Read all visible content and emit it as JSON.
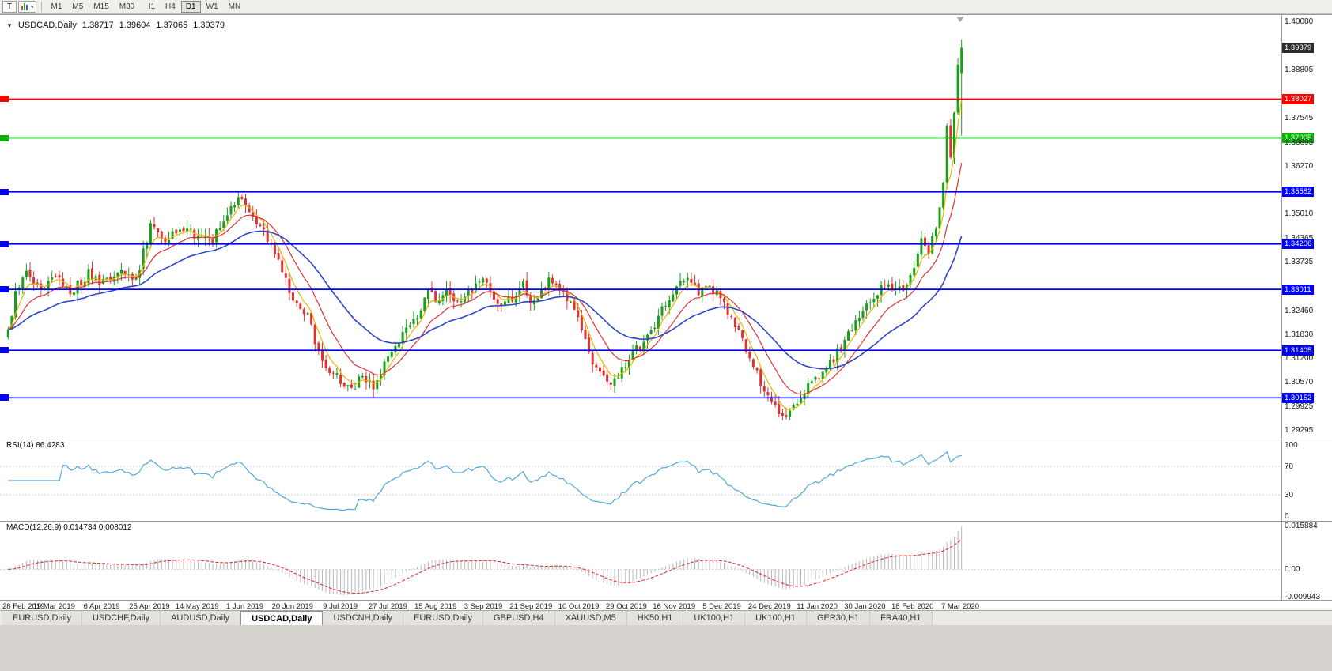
{
  "toolbar": {
    "tool_button_label": "T",
    "dropdown_caret": "▾",
    "timeframes": [
      "M1",
      "M5",
      "M15",
      "M30",
      "H1",
      "H4",
      "D1",
      "W1",
      "MN"
    ],
    "active_timeframe": "D1"
  },
  "chart_header": {
    "marker": "▼",
    "title": "USDCAD,Daily",
    "open": "1.38717",
    "high": "1.39604",
    "low": "1.37065",
    "close": "1.39379"
  },
  "chart_data": {
    "type": "candlestick",
    "symbol": "USDCAD",
    "timeframe": "Daily",
    "bars": 262,
    "y_axis": {
      "min": 1.292,
      "max": 1.401,
      "ticks": [
        "1.40080",
        "1.38805",
        "1.37545",
        "1.36895",
        "1.36270",
        "1.35010",
        "1.34365",
        "1.33735",
        "1.32460",
        "1.31830",
        "1.31200",
        "1.30570",
        "1.29925",
        "1.29295"
      ]
    },
    "date_ticks": [
      "28 Feb 2019",
      "19 Mar 2019",
      "6 Apr 2019",
      "25 Apr 2019",
      "14 May 2019",
      "1 Jun 2019",
      "20 Jun 2019",
      "9 Jul 2019",
      "27 Jul 2019",
      "15 Aug 2019",
      "3 Sep 2019",
      "21 Sep 2019",
      "10 Oct 2019",
      "29 Oct 2019",
      "16 Nov 2019",
      "5 Dec 2019",
      "24 Dec 2019",
      "11 Jan 2020",
      "30 Jan 2020",
      "18 Feb 2020",
      "7 Mar 2020"
    ],
    "hlines": [
      {
        "value": 1.38027,
        "label": "1.38027",
        "color": "#ff0000"
      },
      {
        "value": 1.37005,
        "label": "1.37005",
        "color": "#00b300"
      },
      {
        "value": 1.35582,
        "label": "1.35582",
        "color": "#0000ff"
      },
      {
        "value": 1.34206,
        "label": "1.34206",
        "color": "#0000ff"
      },
      {
        "value": 1.33011,
        "label": "1.33011",
        "color": "#0000ff"
      },
      {
        "value": 1.31405,
        "label": "1.31405",
        "color": "#0000ff"
      },
      {
        "value": 1.30152,
        "label": "1.30152",
        "color": "#0000ff"
      }
    ],
    "current_price_tag": {
      "value": 1.39379,
      "label": "1.39379",
      "bg": "#2d2d2d"
    },
    "last_bar": {
      "open": 1.38717,
      "high": 1.39604,
      "low": 1.37065,
      "close": 1.39379
    },
    "ma_periods": {
      "fast": 5,
      "mid": 13,
      "slow": 34
    },
    "colors": {
      "up": "#18a118",
      "down": "#e03232",
      "ma_fast": "#e8b400",
      "ma_mid": "#e03232",
      "ma_slow": "#2d46c8"
    },
    "close_waypoints": [
      [
        0,
        1.3185
      ],
      [
        2,
        1.33
      ],
      [
        5,
        1.3345
      ],
      [
        9,
        1.3295
      ],
      [
        13,
        1.334
      ],
      [
        17,
        1.329
      ],
      [
        22,
        1.3345
      ],
      [
        26,
        1.3315
      ],
      [
        31,
        1.336
      ],
      [
        35,
        1.333
      ],
      [
        39,
        1.347
      ],
      [
        43,
        1.3425
      ],
      [
        47,
        1.3465
      ],
      [
        52,
        1.344
      ],
      [
        56,
        1.3435
      ],
      [
        60,
        1.349
      ],
      [
        63,
        1.355
      ],
      [
        66,
        1.3515
      ],
      [
        70,
        1.3455
      ],
      [
        74,
        1.3385
      ],
      [
        78,
        1.3275
      ],
      [
        82,
        1.3235
      ],
      [
        85,
        1.3135
      ],
      [
        88,
        1.309
      ],
      [
        91,
        1.306
      ],
      [
        94,
        1.3038
      ],
      [
        97,
        1.3075
      ],
      [
        100,
        1.3048
      ],
      [
        104,
        1.312
      ],
      [
        108,
        1.3185
      ],
      [
        112,
        1.3235
      ],
      [
        115,
        1.33
      ],
      [
        117,
        1.3272
      ],
      [
        120,
        1.331
      ],
      [
        123,
        1.3258
      ],
      [
        126,
        1.3292
      ],
      [
        129,
        1.3328
      ],
      [
        132,
        1.33
      ],
      [
        135,
        1.3248
      ],
      [
        138,
        1.3282
      ],
      [
        141,
        1.331
      ],
      [
        143,
        1.3268
      ],
      [
        146,
        1.33
      ],
      [
        149,
        1.333
      ],
      [
        152,
        1.3295
      ],
      [
        156,
        1.323
      ],
      [
        159,
        1.313
      ],
      [
        162,
        1.3075
      ],
      [
        165,
        1.3048
      ],
      [
        168,
        1.309
      ],
      [
        171,
        1.3132
      ],
      [
        174,
        1.3162
      ],
      [
        177,
        1.3205
      ],
      [
        180,
        1.3268
      ],
      [
        183,
        1.3305
      ],
      [
        186,
        1.3322
      ],
      [
        189,
        1.329
      ],
      [
        192,
        1.3312
      ],
      [
        195,
        1.3282
      ],
      [
        198,
        1.3222
      ],
      [
        201,
        1.3162
      ],
      [
        204,
        1.3095
      ],
      [
        207,
        1.3035
      ],
      [
        210,
        1.2985
      ],
      [
        213,
        1.2968
      ],
      [
        216,
        1.3012
      ],
      [
        219,
        1.3052
      ],
      [
        222,
        1.3068
      ],
      [
        225,
        1.3105
      ],
      [
        228,
        1.3152
      ],
      [
        231,
        1.3198
      ],
      [
        234,
        1.3238
      ],
      [
        237,
        1.328
      ],
      [
        240,
        1.3312
      ],
      [
        243,
        1.3292
      ],
      [
        246,
        1.3315
      ],
      [
        248,
        1.3362
      ],
      [
        250,
        1.3432
      ],
      [
        252,
        1.3405
      ],
      [
        254,
        1.3455
      ],
      [
        256,
        1.3595
      ],
      [
        257,
        1.3725
      ],
      [
        258,
        1.3645
      ],
      [
        259,
        1.3775
      ],
      [
        260,
        1.3885
      ],
      [
        261,
        1.39379
      ]
    ],
    "indicators": {
      "rsi": {
        "label": "RSI(14) 86.4283",
        "period": 14,
        "last_value": 86.4283,
        "levels": [
          70,
          30
        ],
        "ticks": [
          "100",
          "70",
          "30",
          "0"
        ],
        "color": "#53a6d8"
      },
      "macd": {
        "label": "MACD(12,26,9) 0.014734 0.008012",
        "fast": 12,
        "slow": 26,
        "signal": 9,
        "macd_value": 0.014734,
        "signal_value": 0.008012,
        "ticks": [
          "0.015884",
          "0.00",
          "-0.009943"
        ],
        "hist_color": "#b8b8b8",
        "signal_color": "#e03232"
      }
    }
  },
  "tabs": [
    {
      "label": "EURUSD,Daily",
      "active": false
    },
    {
      "label": "USDCHF,Daily",
      "active": false
    },
    {
      "label": "AUDUSD,Daily",
      "active": false
    },
    {
      "label": "USDCAD,Daily",
      "active": true
    },
    {
      "label": "USDCNH,Daily",
      "active": false
    },
    {
      "label": "EURUSD,Daily",
      "active": false
    },
    {
      "label": "GBPUSD,H4",
      "active": false
    },
    {
      "label": "XAUUSD,M5",
      "active": false
    },
    {
      "label": "HK50,H1",
      "active": false
    },
    {
      "label": "UK100,H1",
      "active": false
    },
    {
      "label": "UK100,H1",
      "active": false
    },
    {
      "label": "GER30,H1",
      "active": false
    },
    {
      "label": "FRA40,H1",
      "active": false
    }
  ]
}
